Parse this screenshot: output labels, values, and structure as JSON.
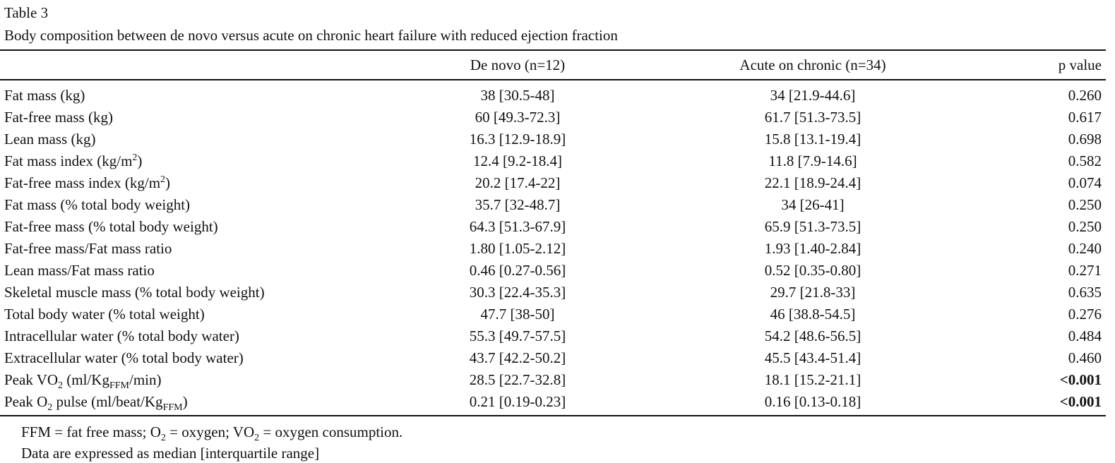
{
  "caption": {
    "label": "Table 3",
    "title": "Body composition between de novo versus acute on chronic heart failure with reduced ejection fraction"
  },
  "header": {
    "col_label": "",
    "col_denovo": "De novo (n=12)",
    "col_acute": "Acute on chronic (n=34)",
    "col_p": "p value"
  },
  "rows": [
    {
      "label": [
        "Fat mass (kg)"
      ],
      "denovo": "38 [30.5-48]",
      "acute": "34 [21.9-44.6]",
      "p": "0.260",
      "bold": false
    },
    {
      "label": [
        "Fat-free mass (kg)"
      ],
      "denovo": "60 [49.3-72.3]",
      "acute": "61.7 [51.3-73.5]",
      "p": "0.617",
      "bold": false
    },
    {
      "label": [
        "Lean mass (kg)"
      ],
      "denovo": "16.3 [12.9-18.9]",
      "acute": "15.8 [13.1-19.4]",
      "p": "0.698",
      "bold": false
    },
    {
      "label": [
        "Fat mass index (kg/m",
        "2",
        ")"
      ],
      "label_markup": "sup",
      "denovo": "12.4 [9.2-18.4]",
      "acute": "11.8 [7.9-14.6]",
      "p": "0.582",
      "bold": false
    },
    {
      "label": [
        "Fat-free mass index (kg/m",
        "2",
        ")"
      ],
      "label_markup": "sup",
      "denovo": "20.2 [17.4-22]",
      "acute": "22.1 [18.9-24.4]",
      "p": "0.074",
      "bold": false
    },
    {
      "label": [
        "Fat mass (% total body weight)"
      ],
      "denovo": "35.7 [32-48.7]",
      "acute": "34 [26-41]",
      "p": "0.250",
      "bold": false
    },
    {
      "label": [
        "Fat-free mass (% total body weight)"
      ],
      "denovo": "64.3 [51.3-67.9]",
      "acute": "65.9 [51.3-73.5]",
      "p": "0.250",
      "bold": false
    },
    {
      "label": [
        "Fat-free mass/Fat mass ratio"
      ],
      "denovo": "1.80 [1.05-2.12]",
      "acute": "1.93 [1.40-2.84]",
      "p": "0.240",
      "bold": false
    },
    {
      "label": [
        "Lean mass/Fat mass ratio"
      ],
      "denovo": "0.46 [0.27-0.56]",
      "acute": "0.52 [0.35-0.80]",
      "p": "0.271",
      "bold": false
    },
    {
      "label": [
        "Skeletal muscle mass (% total body weight)"
      ],
      "denovo": "30.3 [22.4-35.3]",
      "acute": "29.7 [21.8-33]",
      "p": "0.635",
      "bold": false
    },
    {
      "label": [
        "Total body water (% total weight)"
      ],
      "denovo": "47.7 [38-50]",
      "acute": "46 [38.8-54.5]",
      "p": "0.276",
      "bold": false
    },
    {
      "label": [
        "Intracellular water (% total body water)"
      ],
      "denovo": "55.3 [49.7-57.5]",
      "acute": "54.2 [48.6-56.5]",
      "p": "0.484",
      "bold": false
    },
    {
      "label": [
        "Extracellular water (% total body water)"
      ],
      "denovo": "43.7 [42.2-50.2]",
      "acute": "45.5 [43.4-51.4]",
      "p": "0.460",
      "bold": false
    },
    {
      "label": [
        "Peak VO",
        "2",
        " (ml/Kg",
        "FFM",
        "/min)"
      ],
      "label_markup": "sub",
      "denovo": "28.5 [22.7-32.8]",
      "acute": "18.1 [15.2-21.1]",
      "p": "<0.001",
      "bold": true
    },
    {
      "label": [
        "Peak O",
        "2",
        " pulse (ml/beat/Kg",
        "FFM",
        ")"
      ],
      "label_markup": "sub",
      "denovo": "0.21 [0.19-0.23]",
      "acute": "0.16 [0.13-0.18]",
      "p": "<0.001",
      "bold": true
    }
  ],
  "footnotes": [
    [
      "FFM = fat free mass; O",
      "2",
      " = oxygen; VO",
      "2",
      " = oxygen consumption."
    ],
    [
      "Data are expressed as median [interquartile range]"
    ]
  ]
}
